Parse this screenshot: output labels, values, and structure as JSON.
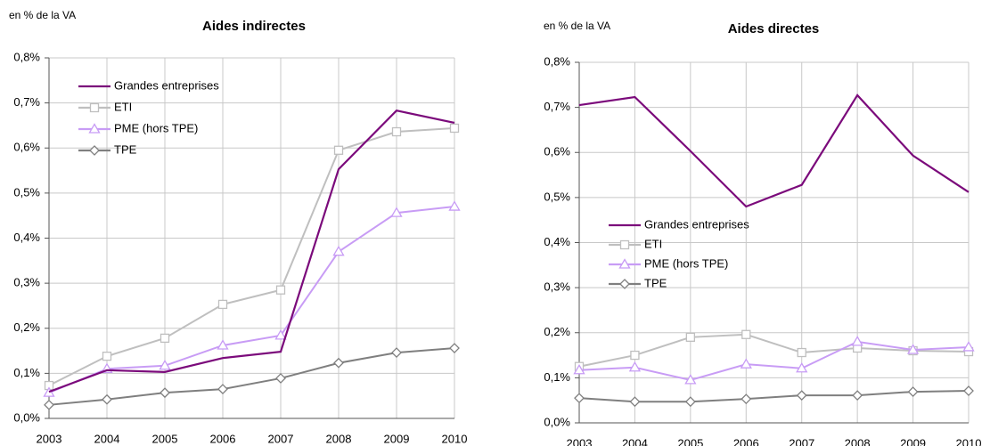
{
  "chart_data": [
    {
      "type": "line",
      "title": "Aides indirectes",
      "ylabel": "en % de la VA",
      "categories": [
        "2003",
        "2004",
        "2005",
        "2006",
        "2007",
        "2008",
        "2009",
        "2010"
      ],
      "series": [
        {
          "name": "Grandes entreprises",
          "color": "#7b0a7b",
          "marker": "none",
          "values": [
            0.059,
            0.107,
            0.103,
            0.134,
            0.148,
            0.553,
            0.683,
            0.656
          ]
        },
        {
          "name": "ETI",
          "color": "#bfbfbf",
          "marker": "square",
          "values": [
            0.073,
            0.138,
            0.178,
            0.253,
            0.285,
            0.595,
            0.636,
            0.644
          ]
        },
        {
          "name": "PME (hors TPE)",
          "color": "#c89cf5",
          "marker": "triangle",
          "values": [
            0.057,
            0.11,
            0.117,
            0.162,
            0.184,
            0.37,
            0.456,
            0.47
          ]
        },
        {
          "name": "TPE",
          "color": "#7f7f7f",
          "marker": "diamond",
          "values": [
            0.03,
            0.042,
            0.057,
            0.065,
            0.089,
            0.123,
            0.146,
            0.156
          ]
        }
      ],
      "ylim": [
        0,
        0.8
      ],
      "yticks": [
        {
          "value": 0,
          "label": "0,0%"
        },
        {
          "value": 0.1,
          "label": "0,1%"
        },
        {
          "value": 0.2,
          "label": "0,2%"
        },
        {
          "value": 0.3,
          "label": "0,3%"
        },
        {
          "value": 0.4,
          "label": "0,4%"
        },
        {
          "value": 0.5,
          "label": "0,5%"
        },
        {
          "value": 0.6,
          "label": "0,6%"
        },
        {
          "value": 0.7,
          "label": "0,7%"
        },
        {
          "value": 0.8,
          "label": "0,8%"
        }
      ],
      "grid": true,
      "legend": "upper left"
    },
    {
      "type": "line",
      "title": "Aides directes",
      "ylabel": "en % de la VA",
      "categories": [
        "2003",
        "2004",
        "2005",
        "2006",
        "2007",
        "2008",
        "2009",
        "2010"
      ],
      "series": [
        {
          "name": "Grandes entreprises",
          "color": "#7b0a7b",
          "marker": "none",
          "values": [
            0.705,
            0.723,
            0.603,
            0.48,
            0.528,
            0.727,
            0.593,
            0.512
          ]
        },
        {
          "name": "ETI",
          "color": "#bfbfbf",
          "marker": "square",
          "values": [
            0.125,
            0.15,
            0.19,
            0.196,
            0.156,
            0.166,
            0.16,
            0.158
          ]
        },
        {
          "name": "PME (hors TPE)",
          "color": "#c89cf5",
          "marker": "triangle",
          "values": [
            0.117,
            0.123,
            0.095,
            0.13,
            0.121,
            0.18,
            0.162,
            0.168
          ]
        },
        {
          "name": "TPE",
          "color": "#7f7f7f",
          "marker": "diamond",
          "values": [
            0.055,
            0.047,
            0.047,
            0.053,
            0.061,
            0.061,
            0.069,
            0.071
          ]
        }
      ],
      "ylim": [
        0,
        0.8
      ],
      "yticks": [
        {
          "value": 0,
          "label": "0,0%"
        },
        {
          "value": 0.1,
          "label": "0,1%"
        },
        {
          "value": 0.2,
          "label": "0,2%"
        },
        {
          "value": 0.3,
          "label": "0,3%"
        },
        {
          "value": 0.4,
          "label": "0,4%"
        },
        {
          "value": 0.5,
          "label": "0,5%"
        },
        {
          "value": 0.6,
          "label": "0,6%"
        },
        {
          "value": 0.7,
          "label": "0,7%"
        },
        {
          "value": 0.8,
          "label": "0,8%"
        }
      ],
      "grid": true,
      "legend": "center left"
    }
  ]
}
